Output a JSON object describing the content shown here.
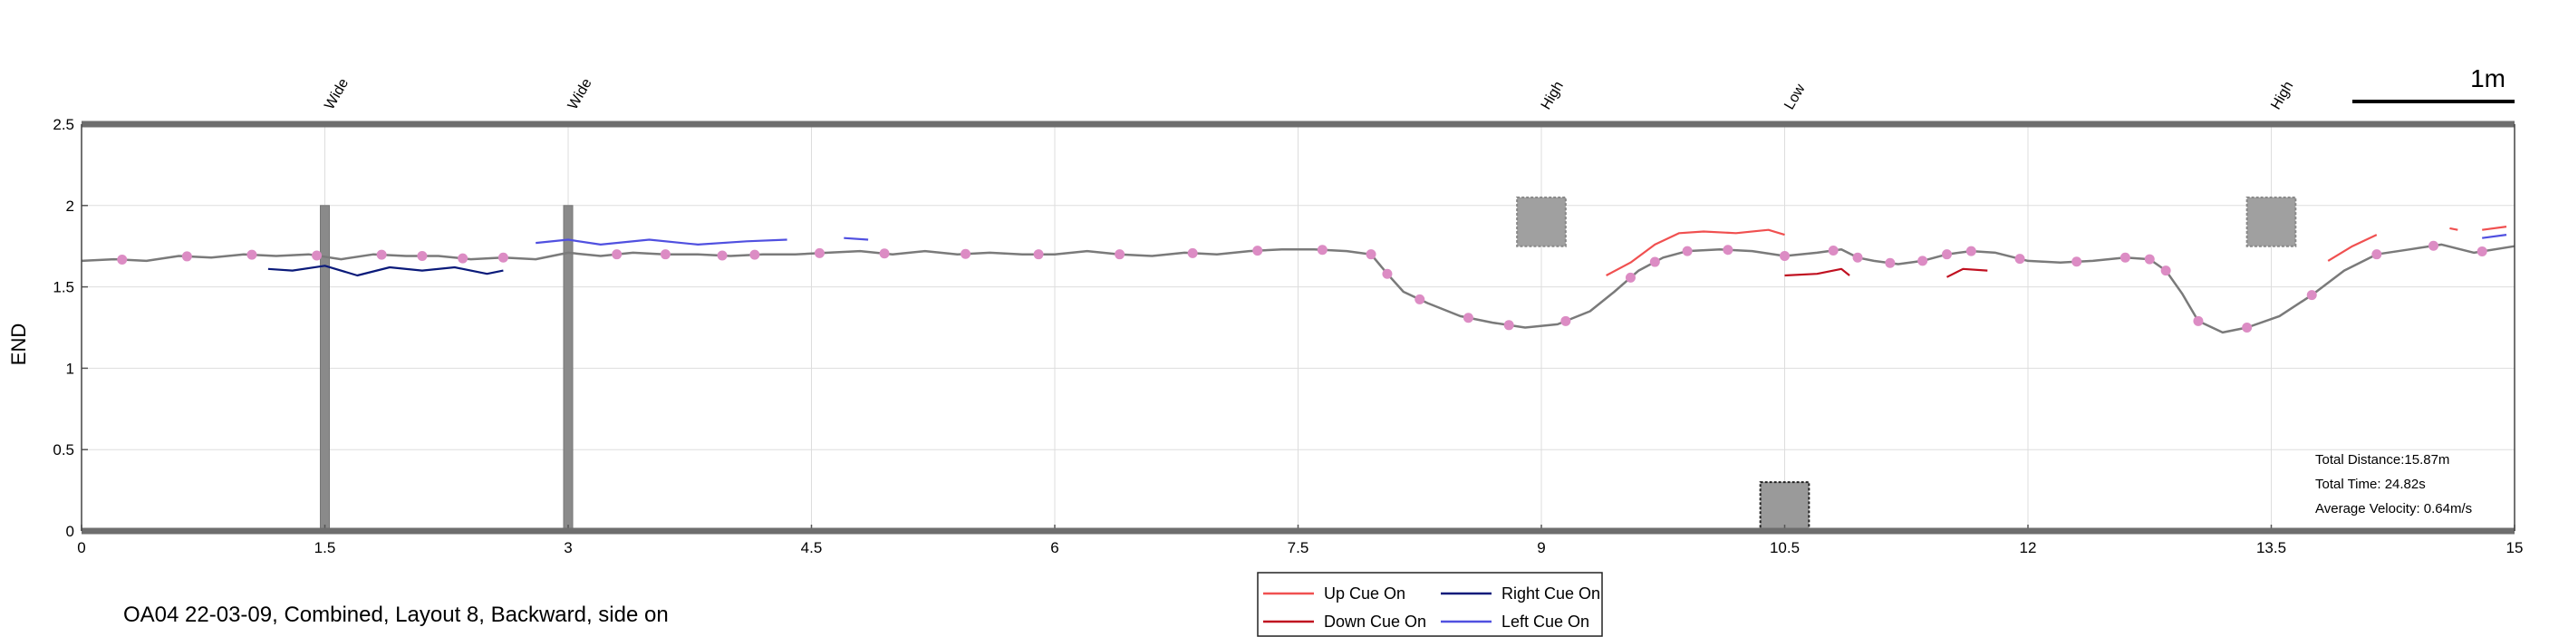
{
  "chart_data": {
    "type": "line",
    "ylabel": "END",
    "xlim": [
      0,
      15
    ],
    "ylim": [
      0,
      2.5
    ],
    "grid": true,
    "x_ticks": [
      "0",
      "1.5",
      "3",
      "4.5",
      "6",
      "7.5",
      "9",
      "10.5",
      "12",
      "13.5",
      "15"
    ],
    "y_ticks": [
      "0",
      "0.5",
      "1",
      "1.5",
      "2",
      "2.5"
    ],
    "obstacles": [
      {
        "label": "Wide",
        "x": 1.5
      },
      {
        "label": "Wide",
        "x": 3.0
      },
      {
        "label": "High",
        "x": 9.0
      },
      {
        "label": "Low",
        "x": 10.5
      },
      {
        "label": "High",
        "x": 13.5
      }
    ],
    "scale_bar": {
      "label": "1m",
      "length": 1.0
    },
    "stats": [
      "Total Distance:15.87m",
      "Total Time: 24.82s",
      "Average Velocity: 0.64m/s"
    ],
    "legend": [
      {
        "name": "Up Cue On",
        "color": "#f05050"
      },
      {
        "name": "Right Cue On",
        "color": "#0a1a7a"
      },
      {
        "name": "Down Cue On",
        "color": "#c01020"
      },
      {
        "name": "Left Cue On",
        "color": "#5050e0"
      }
    ],
    "caption": "OA04 22-03-09, Combined, Layout 8, Backward, side on",
    "series": [
      {
        "name": "trajectory",
        "color": "#7a7a7a",
        "x": [
          0,
          0.2,
          0.4,
          0.6,
          0.8,
          1.0,
          1.2,
          1.4,
          1.6,
          1.8,
          2.0,
          2.2,
          2.4,
          2.6,
          2.8,
          3.0,
          3.2,
          3.4,
          3.6,
          3.8,
          4.0,
          4.2,
          4.4,
          4.6,
          4.8,
          5.0,
          5.2,
          5.4,
          5.6,
          5.8,
          6.0,
          6.2,
          6.4,
          6.6,
          6.8,
          7.0,
          7.2,
          7.4,
          7.6,
          7.8,
          7.95,
          8.05,
          8.15,
          8.3,
          8.5,
          8.7,
          8.9,
          9.1,
          9.3,
          9.45,
          9.6,
          9.75,
          9.9,
          10.1,
          10.3,
          10.5,
          10.7,
          10.85,
          10.95,
          11.05,
          11.2,
          11.35,
          11.5,
          11.65,
          11.8,
          12.0,
          12.2,
          12.4,
          12.6,
          12.75,
          12.85,
          12.95,
          13.05,
          13.2,
          13.35,
          13.55,
          13.75,
          13.95,
          14.15,
          14.35,
          14.55,
          14.75,
          15.0
        ],
        "y": [
          1.66,
          1.67,
          1.66,
          1.69,
          1.68,
          1.7,
          1.69,
          1.7,
          1.67,
          1.7,
          1.69,
          1.69,
          1.67,
          1.68,
          1.67,
          1.71,
          1.69,
          1.71,
          1.7,
          1.7,
          1.69,
          1.7,
          1.7,
          1.71,
          1.72,
          1.7,
          1.72,
          1.7,
          1.71,
          1.7,
          1.7,
          1.72,
          1.7,
          1.69,
          1.71,
          1.7,
          1.72,
          1.73,
          1.73,
          1.72,
          1.7,
          1.58,
          1.47,
          1.4,
          1.32,
          1.28,
          1.25,
          1.27,
          1.35,
          1.47,
          1.6,
          1.68,
          1.72,
          1.73,
          1.72,
          1.69,
          1.71,
          1.73,
          1.68,
          1.66,
          1.64,
          1.66,
          1.7,
          1.72,
          1.71,
          1.66,
          1.65,
          1.66,
          1.68,
          1.67,
          1.6,
          1.46,
          1.29,
          1.22,
          1.25,
          1.32,
          1.45,
          1.6,
          1.7,
          1.73,
          1.76,
          1.71,
          1.75
        ]
      },
      {
        "name": "markers",
        "color": "#dc8cc4",
        "x": [
          0.25,
          0.65,
          1.05,
          1.45,
          1.85,
          2.1,
          2.35,
          2.6,
          3.3,
          3.6,
          3.95,
          4.15,
          4.55,
          4.95,
          5.45,
          5.9,
          6.4,
          6.85,
          7.25,
          7.65,
          7.95,
          8.05,
          8.25,
          8.55,
          8.8,
          9.15,
          9.55,
          9.7,
          9.9,
          10.15,
          10.5,
          10.8,
          10.95,
          11.15,
          11.35,
          11.5,
          11.65,
          11.95,
          12.3,
          12.6,
          12.75,
          12.85,
          13.05,
          13.35,
          13.75,
          14.15,
          14.5,
          14.8
        ]
      },
      {
        "name": "Up Cue On",
        "color": "#f05050",
        "segments": [
          {
            "x": [
              9.4,
              9.55,
              9.7,
              9.85,
              10.0,
              10.2,
              10.4,
              10.5
            ],
            "y": [
              1.57,
              1.65,
              1.76,
              1.83,
              1.84,
              1.83,
              1.85,
              1.82
            ]
          },
          {
            "x": [
              13.85,
              14.0,
              14.15
            ],
            "y": [
              1.66,
              1.75,
              1.82
            ]
          },
          {
            "x": [
              14.6,
              14.65
            ],
            "y": [
              1.86,
              1.85
            ]
          },
          {
            "x": [
              14.8,
              14.95
            ],
            "y": [
              1.85,
              1.87
            ]
          }
        ]
      },
      {
        "name": "Right Cue On",
        "color": "#0a1a7a",
        "segments": [
          {
            "x": [
              1.15,
              1.3,
              1.5,
              1.7,
              1.9,
              2.1,
              2.3,
              2.5,
              2.6
            ],
            "y": [
              1.61,
              1.6,
              1.63,
              1.57,
              1.62,
              1.6,
              1.62,
              1.58,
              1.6
            ]
          }
        ]
      },
      {
        "name": "Down Cue On",
        "color": "#c01020",
        "segments": [
          {
            "x": [
              10.5,
              10.7,
              10.85,
              10.9
            ],
            "y": [
              1.57,
              1.58,
              1.61,
              1.57
            ]
          },
          {
            "x": [
              11.5,
              11.6,
              11.75
            ],
            "y": [
              1.56,
              1.61,
              1.6
            ]
          }
        ]
      },
      {
        "name": "Left Cue On",
        "color": "#5050e0",
        "segments": [
          {
            "x": [
              2.8,
              3.0,
              3.2,
              3.5,
              3.8,
              4.1,
              4.35
            ],
            "y": [
              1.77,
              1.79,
              1.76,
              1.79,
              1.76,
              1.78,
              1.79
            ]
          },
          {
            "x": [
              4.7,
              4.85
            ],
            "y": [
              1.8,
              1.79
            ]
          },
          {
            "x": [
              14.8,
              14.95
            ],
            "y": [
              1.8,
              1.82
            ]
          }
        ]
      }
    ]
  }
}
